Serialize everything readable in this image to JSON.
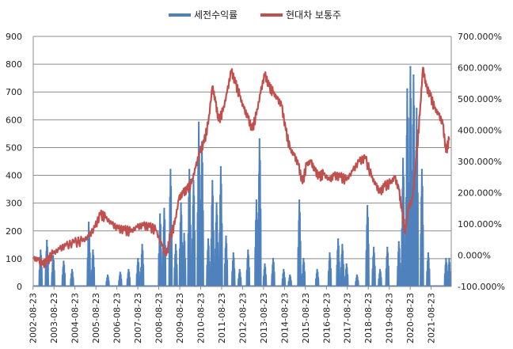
{
  "chart_data": {
    "type": "line",
    "title": "",
    "legend": {
      "placement": "top-center"
    },
    "grid": true,
    "x_tick_labels": [
      "2002-08-23",
      "2003-08-23",
      "2004-08-23",
      "2005-08-23",
      "2006-08-23",
      "2007-08-23",
      "2008-08-23",
      "2009-08-23",
      "2010-08-23",
      "2011-08-23",
      "2012-08-23",
      "2013-08-23",
      "2014-08-23",
      "2015-08-23",
      "2016-08-23",
      "2017-08-23",
      "2018-08-23",
      "2019-08-23",
      "2020-08-23",
      "2021-08-23"
    ],
    "y_left": {
      "min": 0,
      "max": 900,
      "ticks": [
        "0",
        "100",
        "200",
        "300",
        "400",
        "500",
        "600",
        "700",
        "800",
        "900"
      ]
    },
    "y_right": {
      "min": -100,
      "max": 700,
      "ticks": [
        "-100.000%",
        "0.000%",
        "100.000%",
        "200.000%",
        "300.000%",
        "400.000%",
        "500.000%",
        "600.000%",
        "700.000%"
      ]
    },
    "series": [
      {
        "name": "세전수익률",
        "axis": "left",
        "color": "#4F81BD",
        "kind": "spikes",
        "peaks": [
          {
            "x": 2003.0,
            "y": 130
          },
          {
            "x": 2003.3,
            "y": 165
          },
          {
            "x": 2003.6,
            "y": 110
          },
          {
            "x": 2004.1,
            "y": 90
          },
          {
            "x": 2004.5,
            "y": 60
          },
          {
            "x": 2005.3,
            "y": 230
          },
          {
            "x": 2005.5,
            "y": 130
          },
          {
            "x": 2006.2,
            "y": 40
          },
          {
            "x": 2006.8,
            "y": 50
          },
          {
            "x": 2007.2,
            "y": 60
          },
          {
            "x": 2007.65,
            "y": 100
          },
          {
            "x": 2007.85,
            "y": 150
          },
          {
            "x": 2008.7,
            "y": 260
          },
          {
            "x": 2008.9,
            "y": 280
          },
          {
            "x": 2009.2,
            "y": 420
          },
          {
            "x": 2009.45,
            "y": 150
          },
          {
            "x": 2009.7,
            "y": 300
          },
          {
            "x": 2009.85,
            "y": 190
          },
          {
            "x": 2010.1,
            "y": 420
          },
          {
            "x": 2010.3,
            "y": 380
          },
          {
            "x": 2010.55,
            "y": 590
          },
          {
            "x": 2010.7,
            "y": 520
          },
          {
            "x": 2011.0,
            "y": 170
          },
          {
            "x": 2011.2,
            "y": 380
          },
          {
            "x": 2011.4,
            "y": 300
          },
          {
            "x": 2011.6,
            "y": 430
          },
          {
            "x": 2011.85,
            "y": 180
          },
          {
            "x": 2012.2,
            "y": 120
          },
          {
            "x": 2012.5,
            "y": 60
          },
          {
            "x": 2012.9,
            "y": 130
          },
          {
            "x": 2013.3,
            "y": 310
          },
          {
            "x": 2013.45,
            "y": 530
          },
          {
            "x": 2013.7,
            "y": 80
          },
          {
            "x": 2014.1,
            "y": 100
          },
          {
            "x": 2014.6,
            "y": 60
          },
          {
            "x": 2014.9,
            "y": 40
          },
          {
            "x": 2015.35,
            "y": 310
          },
          {
            "x": 2015.55,
            "y": 100
          },
          {
            "x": 2016.2,
            "y": 60
          },
          {
            "x": 2016.8,
            "y": 120
          },
          {
            "x": 2017.2,
            "y": 170
          },
          {
            "x": 2017.4,
            "y": 150
          },
          {
            "x": 2017.6,
            "y": 80
          },
          {
            "x": 2018.1,
            "y": 40
          },
          {
            "x": 2018.6,
            "y": 290
          },
          {
            "x": 2018.9,
            "y": 140
          },
          {
            "x": 2019.2,
            "y": 60
          },
          {
            "x": 2019.55,
            "y": 140
          },
          {
            "x": 2020.1,
            "y": 160
          },
          {
            "x": 2020.3,
            "y": 460
          },
          {
            "x": 2020.5,
            "y": 710
          },
          {
            "x": 2020.65,
            "y": 790
          },
          {
            "x": 2020.8,
            "y": 760
          },
          {
            "x": 2020.95,
            "y": 640
          },
          {
            "x": 2021.2,
            "y": 420
          },
          {
            "x": 2021.5,
            "y": 120
          },
          {
            "x": 2022.35,
            "y": 100
          },
          {
            "x": 2022.5,
            "y": 100
          }
        ]
      },
      {
        "name": "현대차 보통주",
        "axis": "right",
        "color": "#C0504D",
        "kind": "line",
        "points": [
          {
            "x": 2002.65,
            "y": -10
          },
          {
            "x": 2002.9,
            "y": -15
          },
          {
            "x": 2003.1,
            "y": -30
          },
          {
            "x": 2003.3,
            "y": -20
          },
          {
            "x": 2003.6,
            "y": 5
          },
          {
            "x": 2003.9,
            "y": 20
          },
          {
            "x": 2004.2,
            "y": 30
          },
          {
            "x": 2004.6,
            "y": 40
          },
          {
            "x": 2005.0,
            "y": 45
          },
          {
            "x": 2005.3,
            "y": 60
          },
          {
            "x": 2005.6,
            "y": 90
          },
          {
            "x": 2005.85,
            "y": 130
          },
          {
            "x": 2006.1,
            "y": 120
          },
          {
            "x": 2006.4,
            "y": 100
          },
          {
            "x": 2006.7,
            "y": 85
          },
          {
            "x": 2007.0,
            "y": 80
          },
          {
            "x": 2007.3,
            "y": 75
          },
          {
            "x": 2007.6,
            "y": 90
          },
          {
            "x": 2007.9,
            "y": 95
          },
          {
            "x": 2008.2,
            "y": 90
          },
          {
            "x": 2008.5,
            "y": 80
          },
          {
            "x": 2008.8,
            "y": 30
          },
          {
            "x": 2009.0,
            "y": 0
          },
          {
            "x": 2009.2,
            "y": 60
          },
          {
            "x": 2009.4,
            "y": 100
          },
          {
            "x": 2009.6,
            "y": 180
          },
          {
            "x": 2009.8,
            "y": 200
          },
          {
            "x": 2010.0,
            "y": 210
          },
          {
            "x": 2010.2,
            "y": 230
          },
          {
            "x": 2010.4,
            "y": 280
          },
          {
            "x": 2010.6,
            "y": 330
          },
          {
            "x": 2010.8,
            "y": 360
          },
          {
            "x": 2011.0,
            "y": 420
          },
          {
            "x": 2011.2,
            "y": 540
          },
          {
            "x": 2011.35,
            "y": 490
          },
          {
            "x": 2011.5,
            "y": 430
          },
          {
            "x": 2011.7,
            "y": 460
          },
          {
            "x": 2011.9,
            "y": 520
          },
          {
            "x": 2012.1,
            "y": 590
          },
          {
            "x": 2012.3,
            "y": 550
          },
          {
            "x": 2012.5,
            "y": 510
          },
          {
            "x": 2012.7,
            "y": 470
          },
          {
            "x": 2012.9,
            "y": 440
          },
          {
            "x": 2013.1,
            "y": 400
          },
          {
            "x": 2013.3,
            "y": 450
          },
          {
            "x": 2013.5,
            "y": 520
          },
          {
            "x": 2013.7,
            "y": 580
          },
          {
            "x": 2013.9,
            "y": 540
          },
          {
            "x": 2014.1,
            "y": 520
          },
          {
            "x": 2014.3,
            "y": 500
          },
          {
            "x": 2014.5,
            "y": 480
          },
          {
            "x": 2014.7,
            "y": 400
          },
          {
            "x": 2014.9,
            "y": 340
          },
          {
            "x": 2015.1,
            "y": 320
          },
          {
            "x": 2015.3,
            "y": 290
          },
          {
            "x": 2015.5,
            "y": 230
          },
          {
            "x": 2015.7,
            "y": 290
          },
          {
            "x": 2015.9,
            "y": 300
          },
          {
            "x": 2016.1,
            "y": 270
          },
          {
            "x": 2016.3,
            "y": 250
          },
          {
            "x": 2016.5,
            "y": 260
          },
          {
            "x": 2016.8,
            "y": 240
          },
          {
            "x": 2017.0,
            "y": 255
          },
          {
            "x": 2017.3,
            "y": 250
          },
          {
            "x": 2017.6,
            "y": 240
          },
          {
            "x": 2017.9,
            "y": 270
          },
          {
            "x": 2018.2,
            "y": 300
          },
          {
            "x": 2018.5,
            "y": 310
          },
          {
            "x": 2018.8,
            "y": 250
          },
          {
            "x": 2019.0,
            "y": 225
          },
          {
            "x": 2019.2,
            "y": 200
          },
          {
            "x": 2019.4,
            "y": 220
          },
          {
            "x": 2019.7,
            "y": 230
          },
          {
            "x": 2019.9,
            "y": 250
          },
          {
            "x": 2020.1,
            "y": 210
          },
          {
            "x": 2020.25,
            "y": 140
          },
          {
            "x": 2020.4,
            "y": 70
          },
          {
            "x": 2020.55,
            "y": 150
          },
          {
            "x": 2020.75,
            "y": 180
          },
          {
            "x": 2020.95,
            "y": 320
          },
          {
            "x": 2021.1,
            "y": 450
          },
          {
            "x": 2021.25,
            "y": 600
          },
          {
            "x": 2021.4,
            "y": 540
          },
          {
            "x": 2021.6,
            "y": 510
          },
          {
            "x": 2021.8,
            "y": 470
          },
          {
            "x": 2022.0,
            "y": 450
          },
          {
            "x": 2022.2,
            "y": 420
          },
          {
            "x": 2022.35,
            "y": 330
          },
          {
            "x": 2022.5,
            "y": 370
          }
        ]
      }
    ]
  }
}
